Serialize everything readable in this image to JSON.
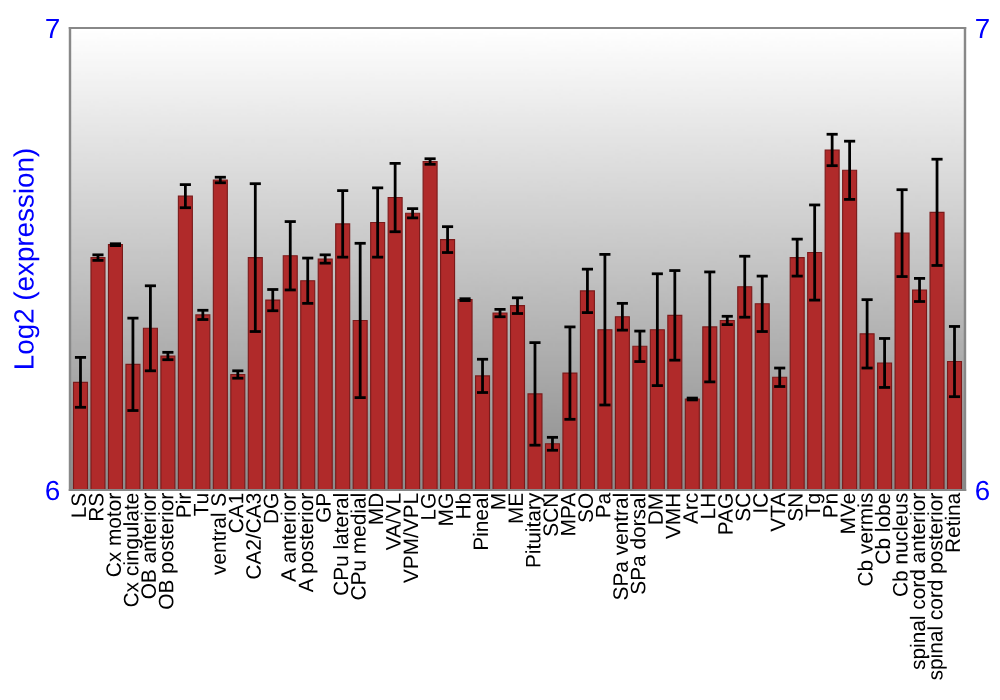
{
  "chart_data": {
    "type": "bar",
    "ylabel": "Log2 (expression)",
    "categories": [
      "LS",
      "RS",
      "Cx motor",
      "Cx cingulate",
      "OB anterior",
      "OB posterior",
      "Pir",
      "Tu",
      "ventral S",
      "CA1",
      "CA2/CA3",
      "DG",
      "A anterior",
      "A posterior",
      "GP",
      "CPu lateral",
      "CPu medial",
      "MD",
      "VA/VL",
      "VPM/VPL",
      "LG",
      "MG",
      "Hb",
      "Pineal",
      "M",
      "ME",
      "Pituitary",
      "SCN",
      "MPA",
      "SO",
      "Pa",
      "SPa ventral",
      "SPa dorsal",
      "DM",
      "VMH",
      "Arc",
      "LH",
      "PAG",
      "SC",
      "IC",
      "VTA",
      "SN",
      "Tg",
      "Pn",
      "MVe",
      "Cb vermis",
      "Cb lobe",
      "Cb nucleus",
      "spinal cord anterior",
      "spinal cord posterior",
      "Retina"
    ],
    "series": [
      {
        "color": "#b02a2a",
        "values": [
          6.233,
          6.503,
          6.531,
          6.272,
          6.35,
          6.29,
          6.636,
          6.379,
          6.671,
          6.25,
          6.503,
          6.411,
          6.507,
          6.453,
          6.5,
          6.576,
          6.367,
          6.579,
          6.633,
          6.599,
          6.711,
          6.542,
          6.412,
          6.247,
          6.383,
          6.399,
          6.208,
          6.1,
          6.253,
          6.431,
          6.347,
          6.375,
          6.311,
          6.347,
          6.378,
          6.197,
          6.353,
          6.367,
          6.44,
          6.403,
          6.244,
          6.503,
          6.514,
          6.736,
          6.692,
          6.338,
          6.275,
          6.556,
          6.433,
          6.601,
          6.278
        ],
        "errors": [
          0.054,
          0.006,
          0.002,
          0.1,
          0.092,
          0.008,
          0.025,
          0.01,
          0.006,
          0.008,
          0.16,
          0.023,
          0.074,
          0.049,
          0.009,
          0.072,
          0.167,
          0.075,
          0.074,
          0.01,
          0.006,
          0.028,
          0.002,
          0.036,
          0.008,
          0.017,
          0.111,
          0.014,
          0.1,
          0.047,
          0.163,
          0.029,
          0.033,
          0.121,
          0.097,
          0.002,
          0.119,
          0.009,
          0.066,
          0.06,
          0.02,
          0.04,
          0.103,
          0.034,
          0.063,
          0.074,
          0.053,
          0.094,
          0.025,
          0.115,
          0.076
        ]
      }
    ],
    "ylim": [
      6,
      7
    ],
    "yticks": [
      6,
      7
    ],
    "y2lim": [
      6,
      7
    ],
    "y2ticks": [
      6,
      7
    ],
    "grid": false,
    "legend": false
  }
}
